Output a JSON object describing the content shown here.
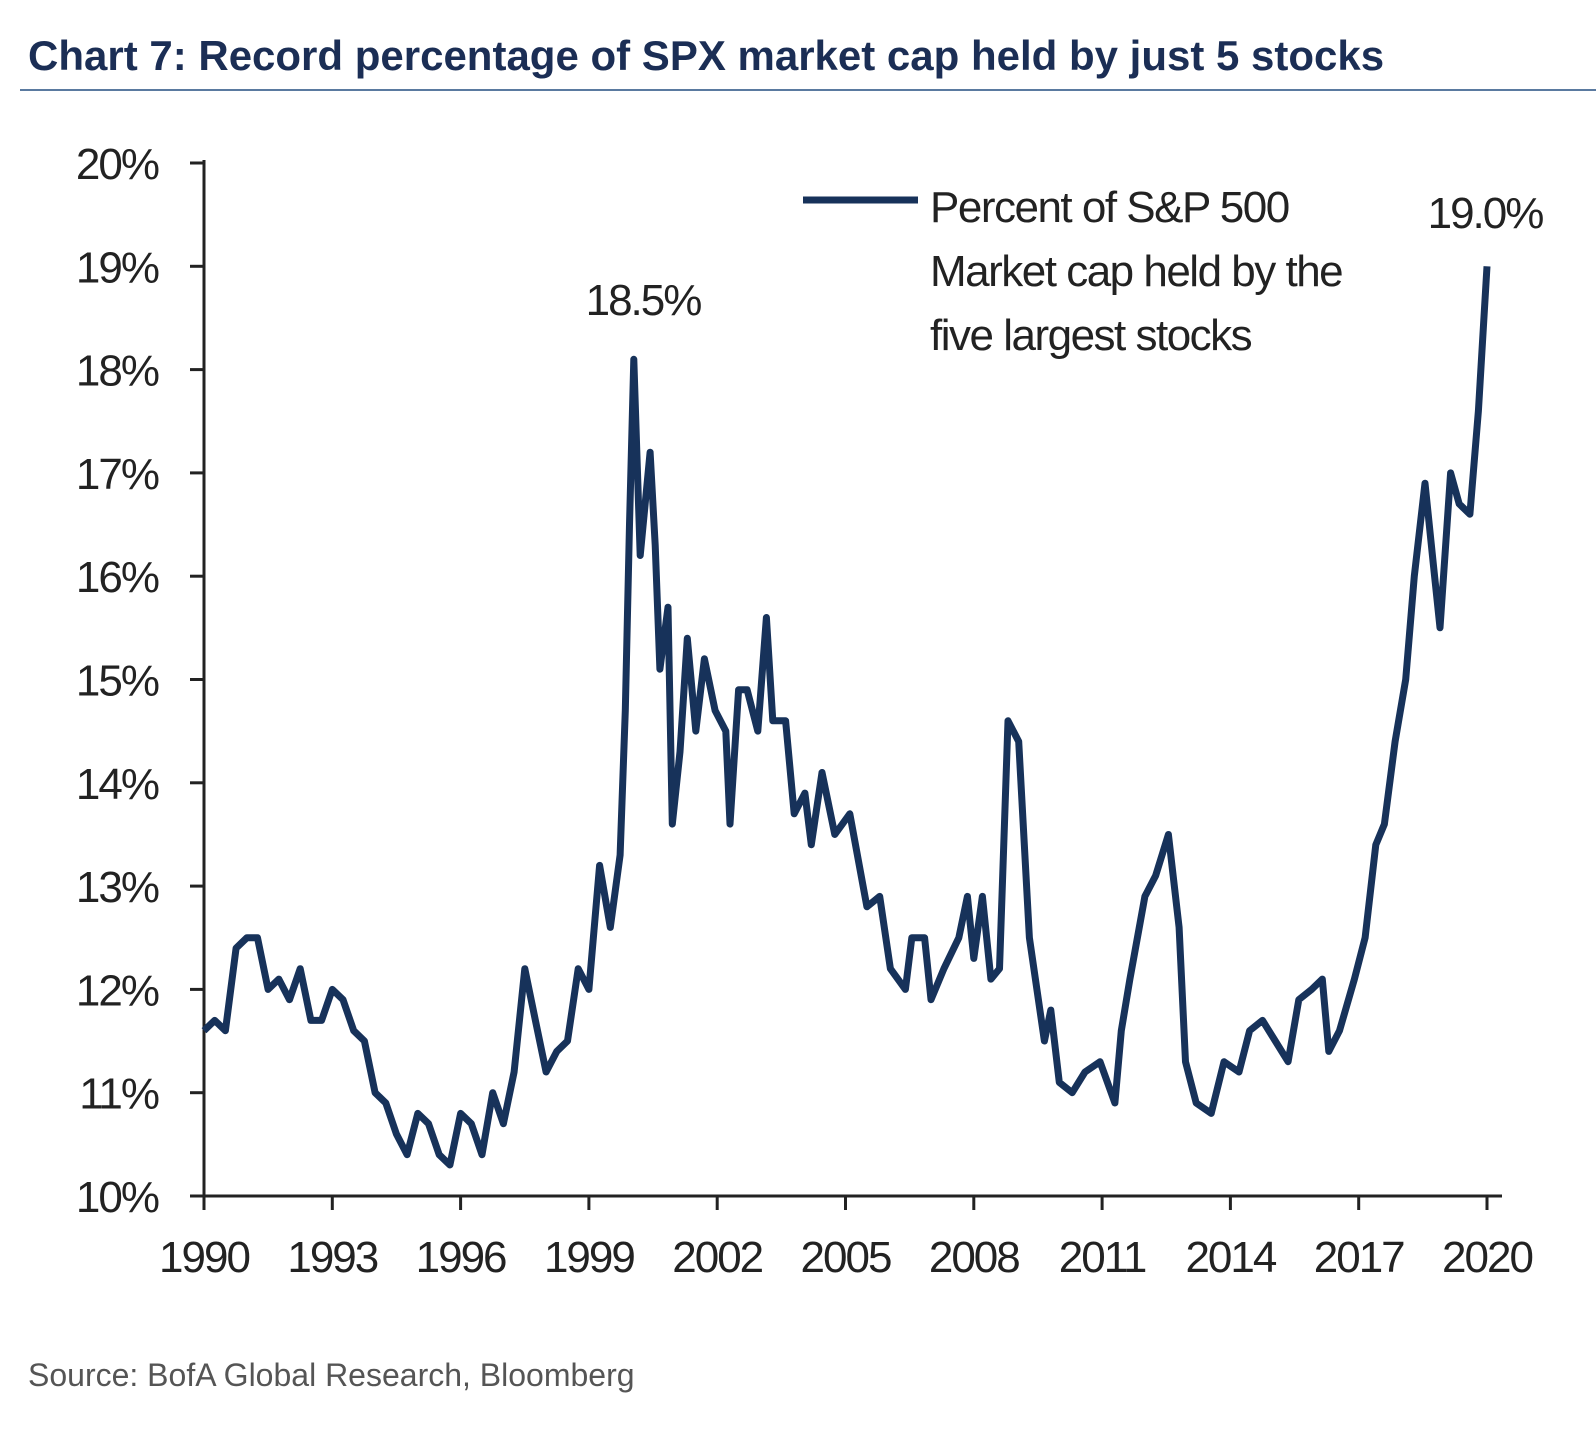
{
  "chart_data": {
    "type": "line",
    "title": "Chart 7: Record percentage of SPX market cap held by just 5 stocks",
    "source": "Source:  BofA Global Research, Bloomberg",
    "annotations": [
      "18.5%",
      "19.0%"
    ],
    "xlim": [
      1990,
      2020
    ],
    "xticks": [
      1990,
      1993,
      1996,
      1999,
      2002,
      2005,
      2008,
      2011,
      2014,
      2017,
      2020
    ],
    "ylim": [
      10,
      20
    ],
    "yticks": [
      {
        "value": 10,
        "label": "10%"
      },
      {
        "value": 11,
        "label": "11%"
      },
      {
        "value": 12,
        "label": "12%"
      },
      {
        "value": 13,
        "label": "13%"
      },
      {
        "value": 14,
        "label": "14%"
      },
      {
        "value": 15,
        "label": "15%"
      },
      {
        "value": 16,
        "label": "16%"
      },
      {
        "value": 17,
        "label": "17%"
      },
      {
        "value": 18,
        "label": "18%"
      },
      {
        "value": 19,
        "label": "19%"
      },
      {
        "value": 20,
        "label": "20%"
      }
    ],
    "legend": "upper right",
    "x": [
      1990,
      1990.25,
      1990.5,
      1990.75,
      1991,
      1991.25,
      1991.5,
      1991.75,
      1992,
      1992.25,
      1992.5,
      1992.75,
      1993,
      1993.25,
      1993.5,
      1993.75,
      1994,
      1994.25,
      1994.5,
      1994.75,
      1995,
      1995.25,
      1995.5,
      1995.75,
      1996,
      1996.25,
      1996.5,
      1996.75,
      1997,
      1997.25,
      1997.5,
      1997.75,
      1998,
      1998.25,
      1998.5,
      1998.75,
      1999,
      1999.25,
      1999.5,
      1999.73,
      1999.85,
      1999.95,
      2000.05,
      2000.2,
      2000.43,
      2000.55,
      2000.66,
      2000.85,
      2000.95,
      2001.13,
      2001.3,
      2001.5,
      2001.7,
      2001.95,
      2002.2,
      2002.3,
      2002.5,
      2002.7,
      2002.95,
      2003.15,
      2003.3,
      2003.6,
      2003.8,
      2004.05,
      2004.2,
      2004.45,
      2004.75,
      2005.1,
      2005.5,
      2005.8,
      2006.05,
      2006.4,
      2006.55,
      2006.85,
      2007,
      2007.3,
      2007.65,
      2007.85,
      2008,
      2008.2,
      2008.4,
      2008.6,
      2008.8,
      2009.05,
      2009.3,
      2009.65,
      2009.8,
      2010,
      2010.3,
      2010.6,
      2010.95,
      2011.3,
      2011.45,
      2011.65,
      2012,
      2012.25,
      2012.55,
      2012.8,
      2012.95,
      2013.2,
      2013.55,
      2013.85,
      2014.2,
      2014.45,
      2014.75,
      2015.05,
      2015.35,
      2015.6,
      2015.9,
      2016.15,
      2016.3,
      2016.55,
      2016.9,
      2017.15,
      2017.4,
      2017.6,
      2017.85,
      2018.1,
      2018.3,
      2018.55,
      2018.75,
      2018.9,
      2019.15,
      2019.35,
      2019.6,
      2019.8,
      2020
    ],
    "series": [
      {
        "name": "Percent of S&P 500 Market cap held by the five largest stocks",
        "color": "#17325a",
        "values": [
          11.6,
          11.7,
          11.6,
          12.4,
          12.5,
          12.5,
          12.0,
          12.1,
          11.9,
          12.2,
          11.7,
          11.7,
          12.0,
          11.9,
          11.6,
          11.5,
          11.0,
          10.9,
          10.6,
          10.4,
          10.8,
          10.7,
          10.4,
          10.3,
          10.8,
          10.7,
          10.4,
          11.0,
          10.7,
          11.2,
          12.2,
          11.7,
          11.2,
          11.4,
          11.5,
          12.2,
          12.0,
          13.2,
          12.6,
          13.3,
          14.7,
          16.5,
          18.1,
          16.2,
          17.2,
          16.3,
          15.1,
          15.7,
          13.6,
          14.3,
          15.4,
          14.5,
          15.2,
          14.7,
          14.5,
          13.6,
          14.9,
          14.9,
          14.5,
          15.6,
          14.6,
          14.6,
          13.7,
          13.9,
          13.4,
          14.1,
          13.5,
          13.7,
          12.8,
          12.9,
          12.2,
          12.0,
          12.5,
          12.5,
          11.9,
          12.2,
          12.5,
          12.9,
          12.3,
          12.9,
          12.1,
          12.2,
          14.6,
          14.4,
          12.5,
          11.5,
          11.8,
          11.1,
          11.0,
          11.2,
          11.3,
          10.9,
          11.6,
          12.1,
          12.9,
          13.1,
          13.5,
          12.6,
          11.3,
          10.9,
          10.8,
          11.3,
          11.2,
          11.6,
          11.7,
          11.5,
          11.3,
          11.9,
          12.0,
          12.1,
          11.4,
          11.6,
          12.1,
          12.5,
          13.4,
          13.6,
          14.4,
          15.0,
          16.0,
          16.9,
          16.1,
          15.5,
          17.0,
          16.7,
          16.6,
          17.6,
          19.0
        ]
      }
    ]
  }
}
